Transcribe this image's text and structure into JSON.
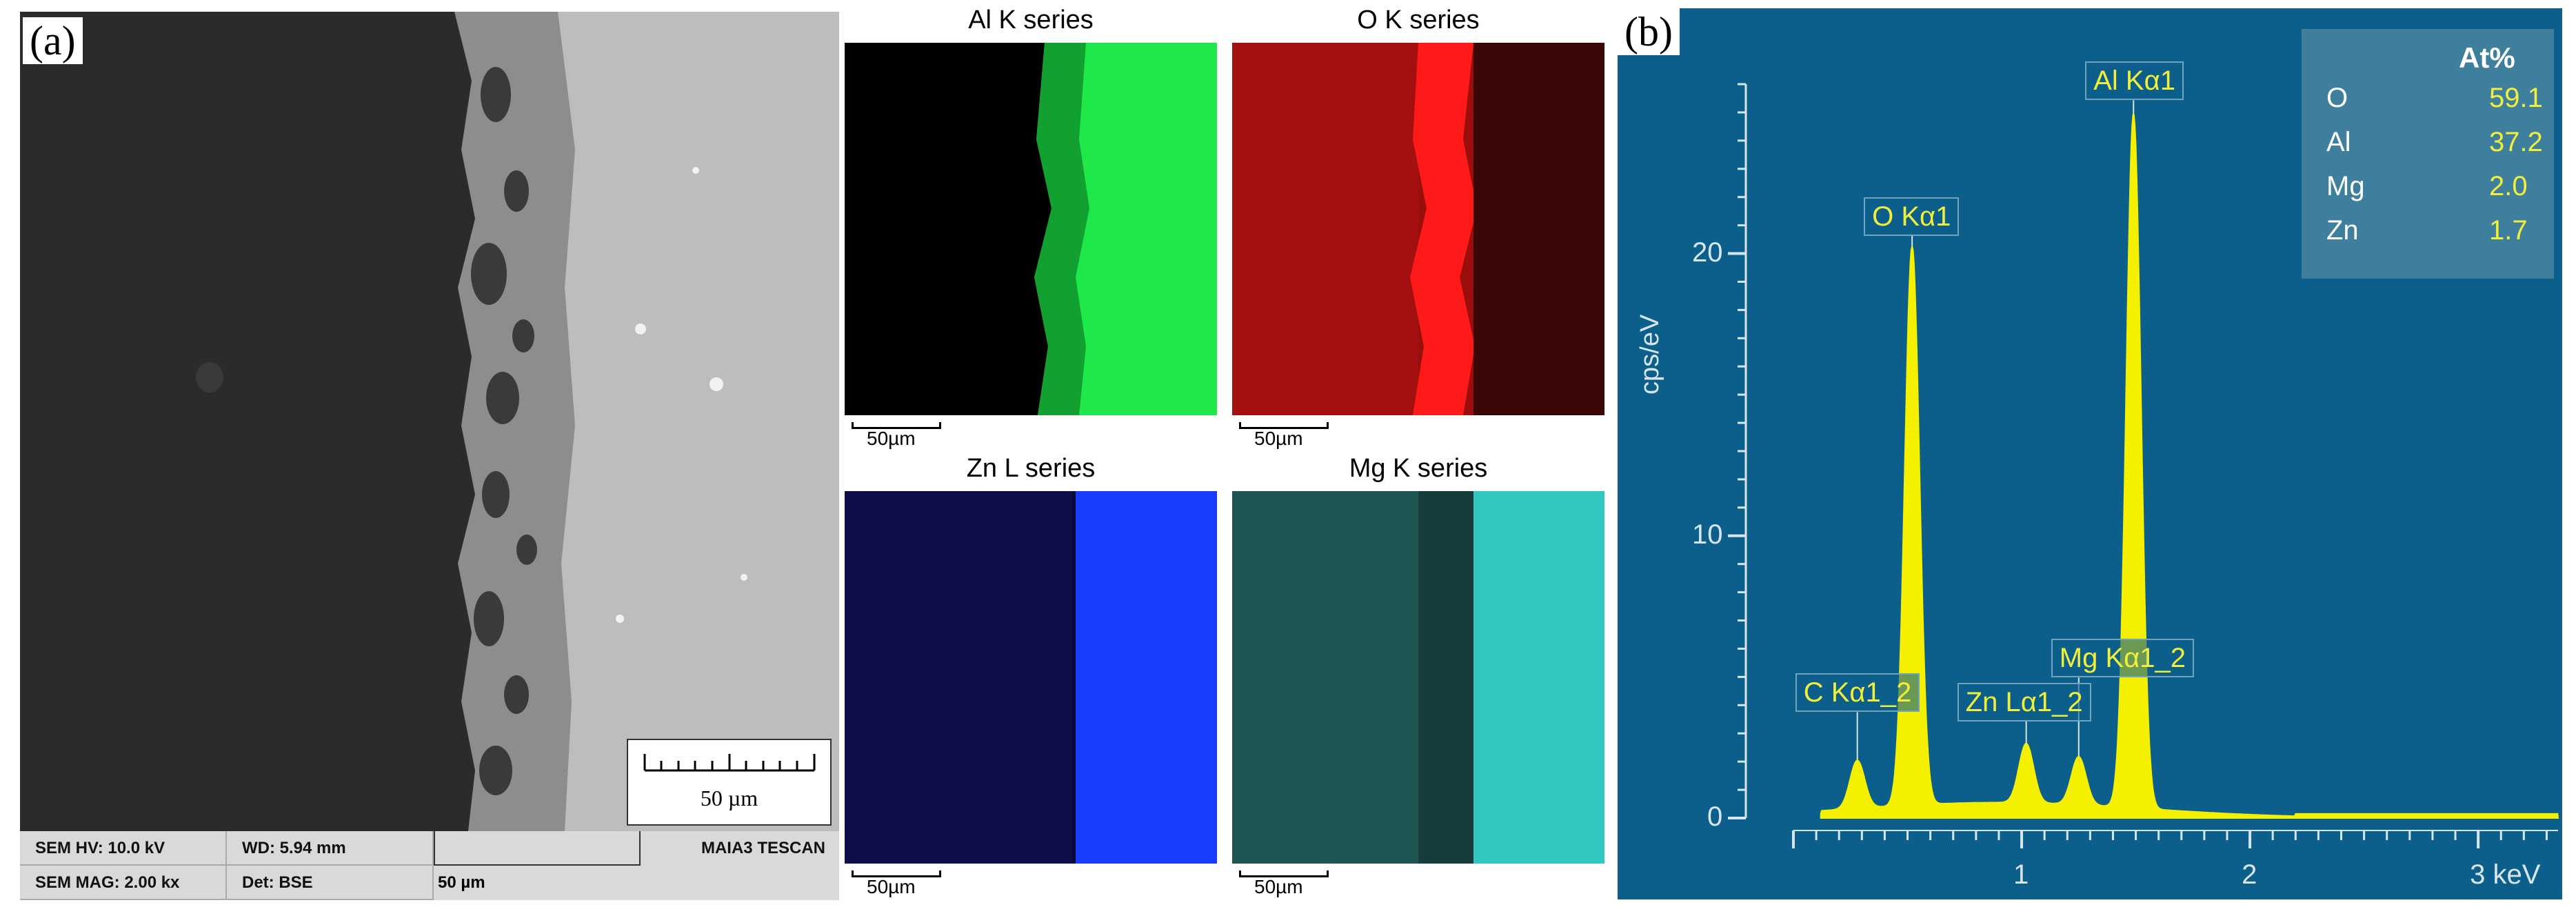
{
  "panel_a_label": "(a)",
  "panel_b_label": "(b)",
  "sem": {
    "scale_bar_label": "50 µm",
    "info": {
      "hv": "SEM HV: 10.0 kV",
      "wd": "WD: 5.94 mm",
      "mag": "SEM MAG: 2.00 kx",
      "det": "Det: BSE",
      "scale": "50 µm",
      "instrument": "MAIA3 TESCAN"
    },
    "colors": {
      "dark_region": "#2b2b2b",
      "oxide": "#8a8a8a",
      "bulk": "#bdbdbd"
    }
  },
  "maps": [
    {
      "title": "Al K series",
      "scale": "50µm",
      "color": "#1ee84a"
    },
    {
      "title": "O K series",
      "scale": "50µm",
      "color": "#ff1a1a"
    },
    {
      "title": "Zn L series",
      "scale": "50µm",
      "color": "#1a3cff"
    },
    {
      "title": "Mg K series",
      "scale": "50µm",
      "color": "#2fc7c0"
    }
  ],
  "chart_data": {
    "type": "line",
    "ylabel": "cps/eV",
    "x_unit": "keV",
    "x_ticks": [
      {
        "value": 1,
        "label": "1"
      },
      {
        "value": 2,
        "label": "2"
      },
      {
        "value": 3,
        "label": "3 keV"
      }
    ],
    "y_ticks": [
      0,
      10,
      20
    ],
    "xlim": [
      0,
      3.35
    ],
    "ylim": [
      0,
      26
    ],
    "peaks": [
      {
        "label": "C Kα1_2",
        "energy_keV": 0.28,
        "height_cps_per_eV": 1.7
      },
      {
        "label": "O Kα1",
        "energy_keV": 0.52,
        "height_cps_per_eV": 19.8
      },
      {
        "label": "Zn Lα1_2",
        "energy_keV": 1.02,
        "height_cps_per_eV": 2.1
      },
      {
        "label": "Mg Kα1_2",
        "energy_keV": 1.25,
        "height_cps_per_eV": 1.7
      },
      {
        "label": "Al Kα1",
        "energy_keV": 1.49,
        "height_cps_per_eV": 24.6
      }
    ],
    "composition_table": {
      "header": "At%",
      "rows": [
        {
          "element": "O",
          "value": "59.1"
        },
        {
          "element": "Al",
          "value": "37.2"
        },
        {
          "element": "Mg",
          "value": "2.0"
        },
        {
          "element": "Zn",
          "value": "1.7"
        }
      ]
    },
    "colors": {
      "background": "#0c5f8a",
      "spectrum": "#f5f000",
      "axis": "#d7e6ee"
    }
  }
}
